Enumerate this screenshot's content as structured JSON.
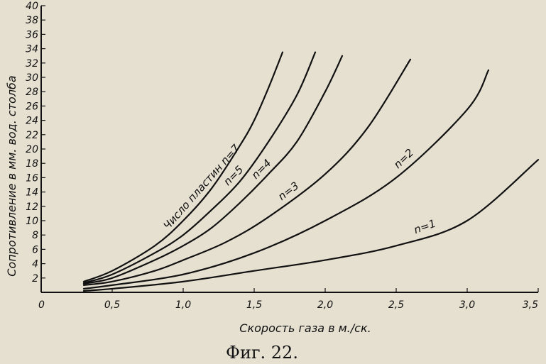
{
  "chart_data": {
    "type": "line",
    "xlabel": "Скорость газа в м./ск.",
    "ylabel": "Сопротивление в мм. вод. столба",
    "xlim": [
      0,
      3.5
    ],
    "ylim": [
      0,
      40
    ],
    "x_ticks": [
      "0",
      "0,5",
      "1,0",
      "1,5",
      "2,0",
      "2,5",
      "3,0",
      "3,5"
    ],
    "y_ticks": [
      "2",
      "4",
      "6",
      "8",
      "10",
      "12",
      "14",
      "16",
      "18",
      "20",
      "22",
      "24",
      "26",
      "28",
      "30",
      "32",
      "34",
      "36",
      "38",
      "40"
    ],
    "grid": false,
    "series": [
      {
        "name": "Число пластин n=7",
        "x": [
          0.3,
          0.5,
          0.8,
          1.0,
          1.2,
          1.4,
          1.5,
          1.6,
          1.7
        ],
        "y": [
          1.5,
          3.0,
          6.5,
          10.0,
          14.5,
          20.5,
          24.0,
          28.5,
          33.5
        ]
      },
      {
        "name": "n=5",
        "x": [
          0.3,
          0.5,
          0.8,
          1.0,
          1.2,
          1.4,
          1.6,
          1.8,
          1.93
        ],
        "y": [
          1.3,
          2.5,
          5.5,
          8.0,
          11.5,
          15.5,
          21.0,
          27.5,
          33.5
        ]
      },
      {
        "name": "n=4",
        "x": [
          0.3,
          0.5,
          0.8,
          1.0,
          1.2,
          1.4,
          1.6,
          1.8,
          2.0,
          2.12
        ],
        "y": [
          1.2,
          2.0,
          4.5,
          6.5,
          9.0,
          12.5,
          16.5,
          21.0,
          28.0,
          33.0
        ]
      },
      {
        "name": "n=3",
        "x": [
          0.3,
          0.5,
          0.8,
          1.0,
          1.3,
          1.6,
          2.0,
          2.3,
          2.6
        ],
        "y": [
          1.0,
          1.5,
          3.0,
          4.5,
          7.0,
          10.5,
          16.5,
          23.0,
          32.5
        ]
      },
      {
        "name": "n=2",
        "x": [
          0.3,
          0.5,
          1.0,
          1.5,
          2.0,
          2.5,
          3.0,
          3.15
        ],
        "y": [
          0.5,
          1.0,
          2.5,
          5.5,
          10.0,
          16.0,
          25.5,
          31.0
        ]
      },
      {
        "name": "n=1",
        "x": [
          0.3,
          0.5,
          1.0,
          1.5,
          2.0,
          2.5,
          3.0,
          3.5
        ],
        "y": [
          0.2,
          0.5,
          1.5,
          3.0,
          4.5,
          6.5,
          10.0,
          18.5
        ]
      }
    ]
  },
  "caption": "Фиг. 22."
}
